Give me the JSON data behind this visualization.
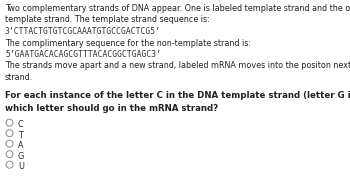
{
  "bg_color": "#ffffff",
  "text_color": "#222222",
  "seq_color": "#333333",
  "line1": "Two complementary strands of DNA appear. One is labeled template strand and the other is labeled non-",
  "line2": "template strand. The template strand sequence is:",
  "line3": "3’CTTACTGTGTCGCAAATGTGCCGACTCG5’",
  "line4": "The complimentary sequence for the non-template strand is:",
  "line5": "5’GAATGACACAGCGTTTACACGGCTGAGC3’",
  "line6": "The strands move apart and a new strand, labeled mRNA moves into the positon next to the template",
  "line7": "strand.",
  "q1": "For each instance of the letter C in the DNA template strand (letter G in the non-template strand),",
  "q2": "which letter should go in the mRNA strand?",
  "options": [
    "C",
    "T",
    "A",
    "G",
    "U"
  ],
  "font_body": 5.8,
  "font_seq": 5.8,
  "font_q": 6.2
}
